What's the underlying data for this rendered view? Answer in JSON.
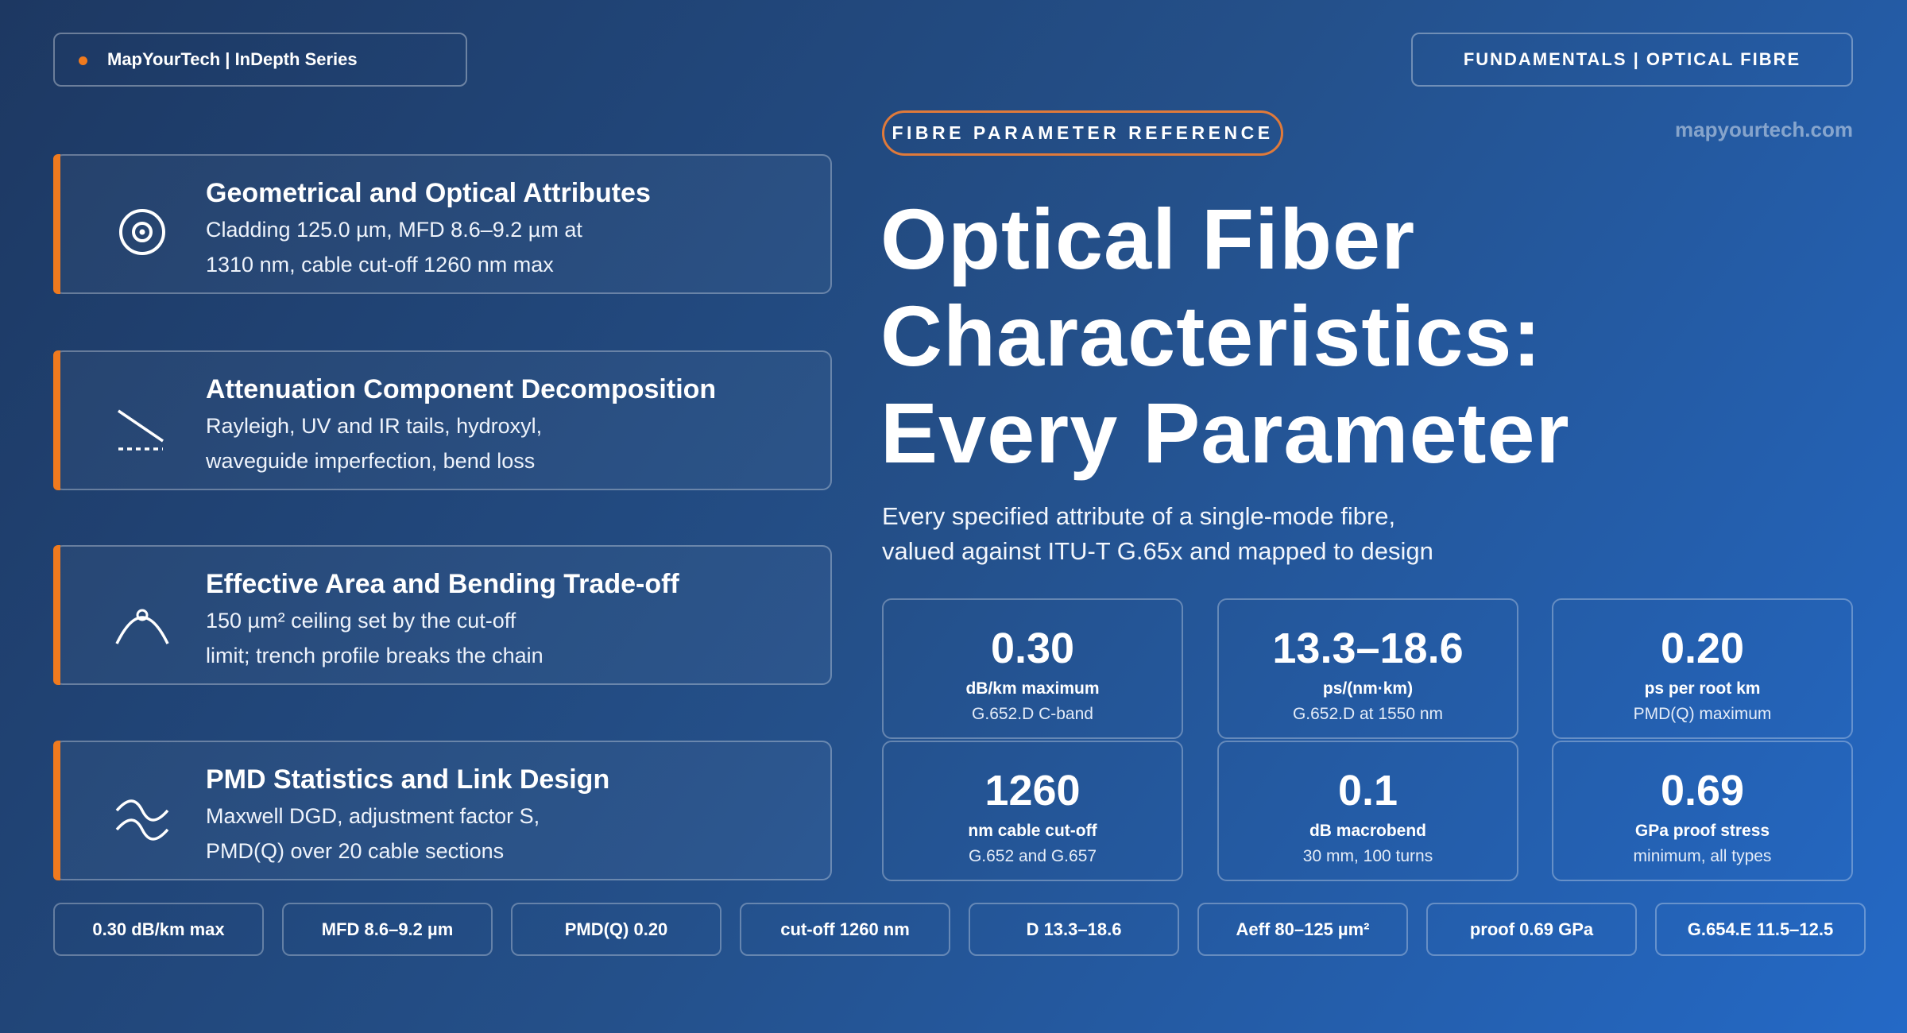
{
  "header": {
    "brand": "MapYourTech | InDepth Series",
    "section": "FUNDAMENTALS | OPTICAL FIBRE",
    "site": "mapyourtech.com"
  },
  "eyebrow": "FIBRE PARAMETER REFERENCE",
  "title": [
    "Optical Fiber",
    "Characteristics:",
    "Every Parameter"
  ],
  "subtitle": [
    "Every specified attribute of a single-mode fibre,",
    "valued against ITU-T G.65x and mapped to design"
  ],
  "topics": [
    {
      "heading": "Geometrical and Optical Attributes",
      "lines": [
        "Cladding 125.0 µm, MFD 8.6–9.2 µm at",
        "1310 nm, cable cut-off 1260 nm max"
      ]
    },
    {
      "heading": "Attenuation Component Decomposition",
      "lines": [
        "Rayleigh, UV and IR tails, hydroxyl,",
        "waveguide imperfection, bend loss"
      ]
    },
    {
      "heading": "Effective Area and Bending Trade-off",
      "lines": [
        "150 µm² ceiling set by the cut-off",
        "limit; trench profile breaks the chain"
      ]
    },
    {
      "heading": "PMD Statistics and Link Design",
      "lines": [
        "Maxwell DGD, adjustment factor S,",
        "PMD(Q) over 20 cable sections"
      ]
    }
  ],
  "stats": [
    {
      "value": "0.30",
      "unit": "dB/km maximum",
      "note": "G.652.D C-band"
    },
    {
      "value": "13.3–18.6",
      "unit": "ps/(nm·km)",
      "note": "G.652.D at 1550 nm"
    },
    {
      "value": "0.20",
      "unit": "ps per root km",
      "note": "PMD(Q) maximum"
    },
    {
      "value": "1260",
      "unit": "nm cable cut-off",
      "note": "G.652 and G.657"
    },
    {
      "value": "0.1",
      "unit": "dB macrobend",
      "note": "30 mm, 100 turns"
    },
    {
      "value": "0.69",
      "unit": "GPa proof stress",
      "note": "minimum, all types"
    }
  ],
  "tags": [
    "0.30 dB/km max",
    "MFD 8.6–9.2 µm",
    "PMD(Q) 0.20",
    "cut-off 1260 nm",
    "D 13.3–18.6",
    "Aeff 80–125 µm²",
    "proof 0.69 GPa",
    "G.654.E 11.5–12.5"
  ]
}
